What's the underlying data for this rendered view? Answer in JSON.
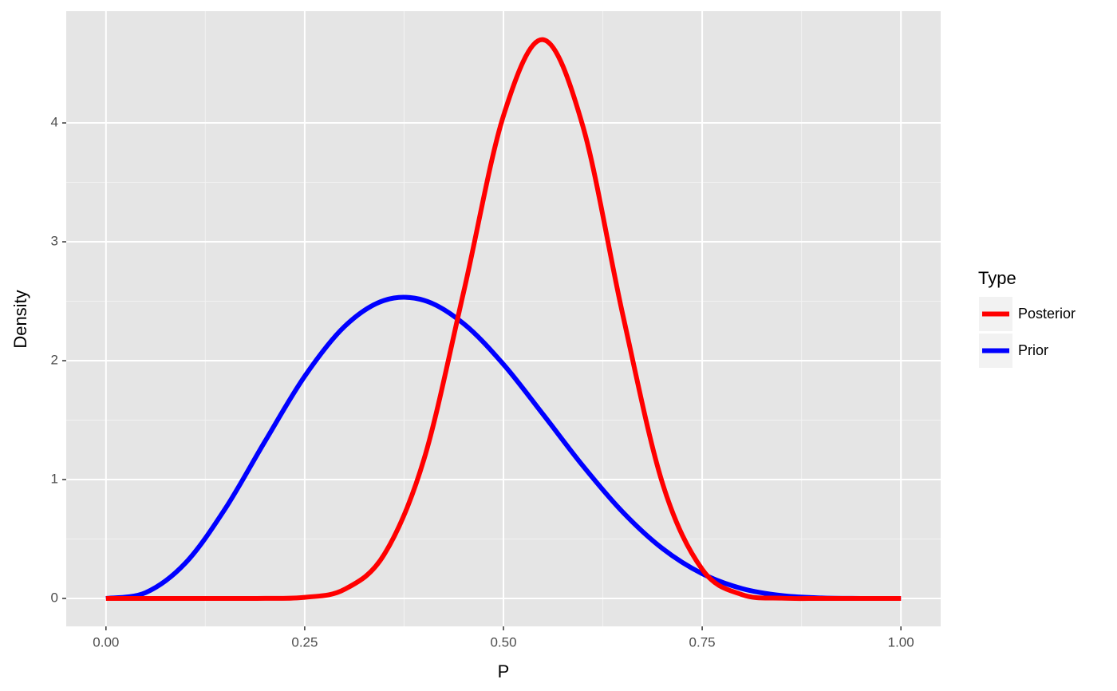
{
  "chart_data": {
    "type": "line",
    "x_label": "P",
    "y_label": "Density",
    "legend_title": "Type",
    "legend_position": "right",
    "grid": true,
    "x": [
      0,
      0.05,
      0.1,
      0.15,
      0.2,
      0.25,
      0.3,
      0.35,
      0.4,
      0.45,
      0.5,
      0.55,
      0.6,
      0.65,
      0.7,
      0.75,
      0.8,
      0.85,
      0.9,
      0.95,
      1
    ],
    "series": [
      {
        "name": "Posterior",
        "color": "#ff0000",
        "values": [
          0,
          0,
          0,
          0,
          0.0005,
          0.009,
          0.076,
          0.37,
          1.17,
          2.58,
          4.06,
          4.7,
          3.97,
          2.39,
          0.97,
          0.245,
          0.032,
          0.002,
          0,
          0,
          0
        ]
      },
      {
        "name": "Prior",
        "color": "#0000ff",
        "values": [
          0,
          0.049,
          0.298,
          0.755,
          1.321,
          1.869,
          2.287,
          2.507,
          2.508,
          2.311,
          1.969,
          1.547,
          1.115,
          0.727,
          0.42,
          0.208,
          0.083,
          0.024,
          0.004,
          0.0002,
          0
        ]
      }
    ],
    "xlim": [
      -0.05,
      1.05
    ],
    "xticks": [
      {
        "value": 0,
        "label": "0.00"
      },
      {
        "value": 0.25,
        "label": "0.25"
      },
      {
        "value": 0.5,
        "label": "0.50"
      },
      {
        "value": 0.75,
        "label": "0.75"
      },
      {
        "value": 1,
        "label": "1.00"
      }
    ],
    "ylim": [
      -0.235,
      4.94
    ],
    "yticks": [
      0,
      1,
      2,
      3,
      4
    ]
  }
}
